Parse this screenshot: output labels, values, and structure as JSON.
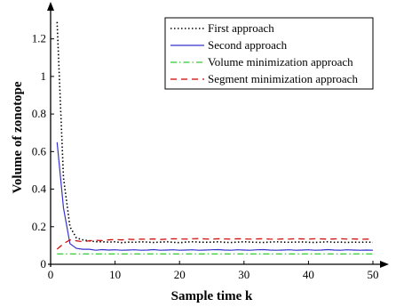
{
  "chart_data": {
    "type": "line",
    "title": "",
    "xlabel": "Sample time k",
    "ylabel": "Volume of zonotope",
    "xlim": [
      0,
      50
    ],
    "ylim": [
      0,
      1.35
    ],
    "xticks": [
      0,
      10,
      20,
      30,
      40,
      50
    ],
    "yticks": [
      0,
      0.2,
      0.4,
      0.6,
      0.8,
      1.0,
      1.2
    ],
    "xtick_labels": [
      "0",
      "10",
      "20",
      "30",
      "40",
      "50"
    ],
    "ytick_labels": [
      "0",
      "0.2",
      "0.4",
      "0.6",
      "0.8",
      "1",
      "1.2"
    ],
    "grid": false,
    "legend_position": "top-right",
    "series": [
      {
        "name": "First approach",
        "color": "#000000",
        "style": "dotted",
        "x": [
          1,
          2,
          3,
          4,
          5,
          6,
          7,
          8,
          9,
          10,
          11,
          12,
          13,
          14,
          15,
          16,
          17,
          18,
          19,
          20,
          21,
          22,
          23,
          24,
          25,
          26,
          27,
          28,
          29,
          30,
          31,
          32,
          33,
          34,
          35,
          36,
          37,
          38,
          39,
          40,
          41,
          42,
          43,
          44,
          45,
          46,
          47,
          48,
          49,
          50
        ],
        "y": [
          1.29,
          0.46,
          0.2,
          0.14,
          0.13,
          0.125,
          0.12,
          0.12,
          0.118,
          0.12,
          0.115,
          0.118,
          0.117,
          0.12,
          0.118,
          0.116,
          0.118,
          0.12,
          0.117,
          0.115,
          0.118,
          0.12,
          0.118,
          0.117,
          0.118,
          0.12,
          0.117,
          0.116,
          0.118,
          0.12,
          0.118,
          0.117,
          0.116,
          0.118,
          0.12,
          0.118,
          0.117,
          0.118,
          0.119,
          0.117,
          0.116,
          0.118,
          0.12,
          0.117,
          0.118,
          0.116,
          0.118,
          0.117,
          0.118,
          0.117
        ]
      },
      {
        "name": "Second approach",
        "color": "#3333cc",
        "style": "solid",
        "x": [
          1,
          2,
          3,
          4,
          5,
          6,
          7,
          8,
          9,
          10,
          11,
          12,
          13,
          14,
          15,
          16,
          17,
          18,
          19,
          20,
          21,
          22,
          23,
          24,
          25,
          26,
          27,
          28,
          29,
          30,
          31,
          32,
          33,
          34,
          35,
          36,
          37,
          38,
          39,
          40,
          41,
          42,
          43,
          44,
          45,
          46,
          47,
          48,
          49,
          50
        ],
        "y": [
          0.65,
          0.3,
          0.11,
          0.085,
          0.08,
          0.08,
          0.075,
          0.078,
          0.076,
          0.077,
          0.075,
          0.076,
          0.077,
          0.075,
          0.076,
          0.078,
          0.075,
          0.076,
          0.077,
          0.075,
          0.076,
          0.077,
          0.075,
          0.076,
          0.077,
          0.078,
          0.076,
          0.075,
          0.077,
          0.076,
          0.075,
          0.077,
          0.078,
          0.076,
          0.075,
          0.076,
          0.077,
          0.075,
          0.076,
          0.077,
          0.075,
          0.076,
          0.078,
          0.076,
          0.075,
          0.077,
          0.076,
          0.075,
          0.076,
          0.075
        ]
      },
      {
        "name": "Volume minimization approach",
        "color": "#33cc33",
        "style": "dashdot",
        "x": [
          1,
          50
        ],
        "y": [
          0.055,
          0.055
        ]
      },
      {
        "name": "Segment minimization approach",
        "color": "#cc0000",
        "style": "dashed",
        "x": [
          1,
          2,
          3,
          4,
          5,
          6,
          7,
          8,
          9,
          10,
          11,
          12,
          13,
          14,
          15,
          16,
          17,
          18,
          19,
          20,
          21,
          22,
          23,
          24,
          25,
          26,
          27,
          28,
          29,
          30,
          31,
          32,
          33,
          34,
          35,
          36,
          37,
          38,
          39,
          40,
          41,
          42,
          43,
          44,
          45,
          46,
          47,
          48,
          49,
          50
        ],
        "y": [
          0.08,
          0.11,
          0.13,
          0.125,
          0.12,
          0.125,
          0.128,
          0.126,
          0.13,
          0.132,
          0.13,
          0.133,
          0.132,
          0.134,
          0.133,
          0.135,
          0.132,
          0.134,
          0.136,
          0.135,
          0.134,
          0.136,
          0.137,
          0.135,
          0.134,
          0.136,
          0.135,
          0.134,
          0.136,
          0.135,
          0.134,
          0.135,
          0.136,
          0.134,
          0.133,
          0.135,
          0.134,
          0.136,
          0.135,
          0.134,
          0.136,
          0.135,
          0.134,
          0.135,
          0.136,
          0.134,
          0.135,
          0.133,
          0.134,
          0.133
        ]
      }
    ]
  }
}
